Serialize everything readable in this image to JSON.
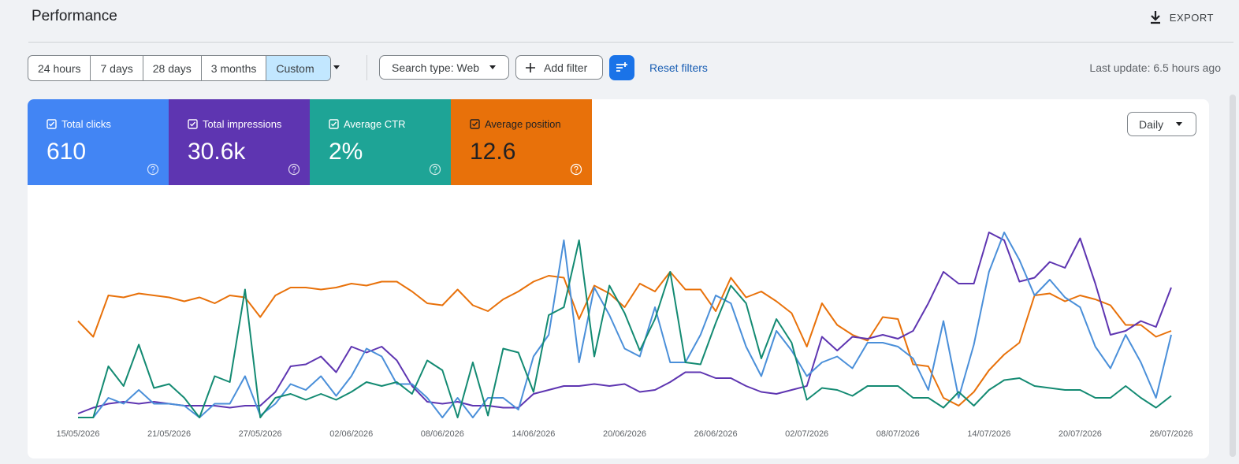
{
  "header": {
    "title": "Performance",
    "export": "EXPORT"
  },
  "toolbar": {
    "ranges": [
      "24 hours",
      "7 days",
      "28 days",
      "3 months",
      "Custom"
    ],
    "search_type": "Search type: Web",
    "add_filter": "Add filter",
    "reset": "Reset filters",
    "last_update": "Last update: 6.5 hours ago"
  },
  "metrics": [
    {
      "label": "Total clicks",
      "value": "610",
      "color": "#4285f4"
    },
    {
      "label": "Total impressions",
      "value": "30.6k",
      "color": "#5e35b1"
    },
    {
      "label": "Average CTR",
      "value": "2%",
      "color": "#1ea496"
    },
    {
      "label": "Average position",
      "value": "12.6",
      "color": "#e8710a"
    }
  ],
  "granularity": "Daily",
  "chart_data": {
    "type": "line",
    "categories": [
      "15/05/2026",
      null,
      null,
      null,
      null,
      null,
      "21/05/2026",
      null,
      null,
      null,
      null,
      null,
      "27/05/2026",
      null,
      null,
      null,
      null,
      null,
      "02/06/2026",
      null,
      null,
      null,
      null,
      null,
      "08/06/2026",
      null,
      null,
      null,
      null,
      null,
      "14/06/2026",
      null,
      null,
      null,
      null,
      null,
      "20/06/2026",
      null,
      null,
      null,
      null,
      null,
      "26/06/2026",
      null,
      null,
      null,
      null,
      null,
      "02/07/2026",
      null,
      null,
      null,
      null,
      null,
      "08/07/2026",
      null,
      null,
      null,
      null,
      null,
      "14/07/2026",
      null,
      null,
      null,
      null,
      null,
      "20/07/2026",
      null,
      null,
      null,
      null,
      null,
      "26/07/2026"
    ],
    "ylim": [
      0,
      100
    ],
    "series": [
      {
        "color": "#e8710a",
        "values": [
          51,
          43,
          64,
          63,
          65,
          64,
          63,
          61,
          63,
          60,
          64,
          63,
          53,
          64,
          68,
          68,
          67,
          68,
          70,
          69,
          71,
          71,
          66,
          60,
          59,
          67,
          59,
          56,
          62,
          66,
          71,
          74,
          73,
          52,
          69,
          65,
          58,
          70,
          66,
          76,
          67,
          67,
          56,
          73,
          63,
          66,
          61,
          55,
          38,
          60,
          49,
          44,
          41,
          53,
          52,
          29,
          28,
          12,
          8,
          15,
          26,
          34,
          40,
          64,
          65,
          61,
          64,
          62,
          59,
          49,
          49,
          43,
          46
        ]
      },
      {
        "color": "#5e35b1",
        "values": [
          4,
          7,
          9,
          10,
          9,
          10,
          9,
          8,
          8,
          8,
          7,
          8,
          8,
          15,
          28,
          29,
          33,
          25,
          38,
          35,
          38,
          31,
          18,
          10,
          9,
          10,
          8,
          8,
          7,
          7,
          14,
          16,
          18,
          18,
          19,
          18,
          19,
          15,
          16,
          20,
          25,
          25,
          22,
          22,
          18,
          15,
          14,
          16,
          18,
          43,
          36,
          43,
          42,
          44,
          42,
          46,
          60,
          76,
          70,
          70,
          96,
          92,
          71,
          73,
          81,
          78,
          93,
          70,
          44,
          46,
          51,
          48,
          68
        ]
      },
      {
        "color": "#4a8fd9",
        "values": [
          2,
          2,
          12,
          9,
          16,
          9,
          9,
          8,
          2,
          9,
          9,
          23,
          3,
          9,
          19,
          16,
          23,
          13,
          23,
          37,
          33,
          19,
          19,
          12,
          2,
          12,
          2,
          12,
          12,
          6,
          33,
          44,
          92,
          30,
          68,
          54,
          37,
          33,
          58,
          30,
          30,
          44,
          64,
          60,
          38,
          23,
          46,
          36,
          23,
          30,
          33,
          27,
          40,
          40,
          38,
          32,
          16,
          51,
          12,
          39,
          76,
          96,
          82,
          64,
          72,
          63,
          58,
          38,
          27,
          44,
          30,
          12,
          44
        ]
      },
      {
        "color": "#138a72",
        "values": [
          2,
          2,
          28,
          18,
          39,
          17,
          19,
          12,
          2,
          23,
          20,
          67,
          2,
          12,
          14,
          11,
          14,
          11,
          15,
          20,
          18,
          20,
          14,
          31,
          26,
          2,
          30,
          3,
          37,
          35,
          15,
          54,
          58,
          92,
          33,
          69,
          55,
          36,
          52,
          76,
          30,
          29,
          50,
          69,
          60,
          32,
          52,
          40,
          11,
          17,
          16,
          13,
          18,
          18,
          18,
          12,
          12,
          7,
          15,
          8,
          16,
          21,
          22,
          18,
          17,
          16,
          16,
          12,
          12,
          18,
          12,
          7,
          13
        ]
      }
    ]
  }
}
